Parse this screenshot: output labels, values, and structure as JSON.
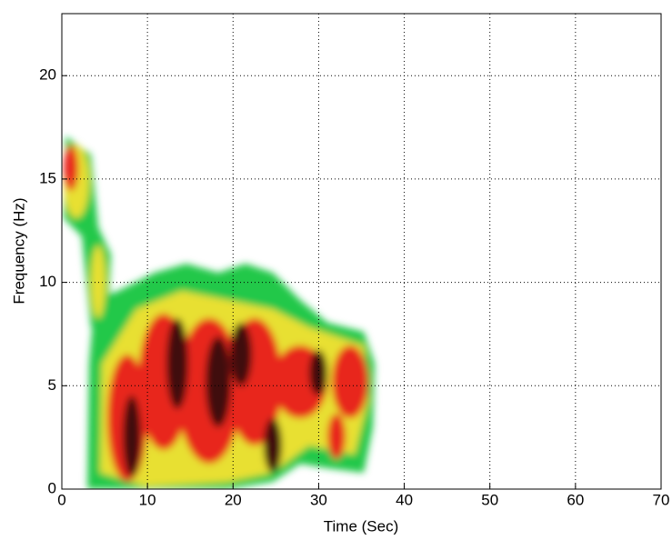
{
  "chart_data": {
    "type": "spectrogram",
    "xlabel": "Time (Sec)",
    "ylabel": "Frequency (Hz)",
    "xlim": [
      0,
      70
    ],
    "ylim": [
      0,
      23
    ],
    "xticks": [
      0,
      10,
      20,
      30,
      40,
      50,
      60,
      70
    ],
    "yticks": [
      0,
      5,
      10,
      15,
      20
    ],
    "grid": true
  }
}
